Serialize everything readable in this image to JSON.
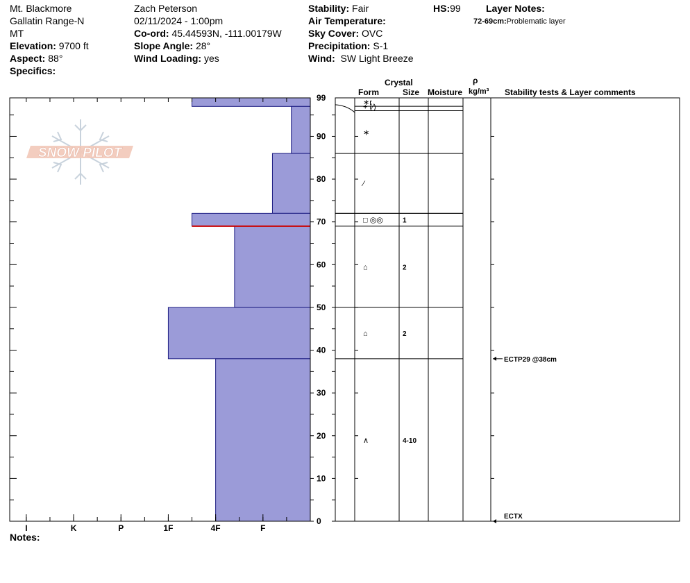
{
  "header": {
    "location": "Mt. Blackmore",
    "range": "Gallatin Range-N",
    "state": "MT",
    "elevation_label": "Elevation:",
    "elevation_value": "9700 ft",
    "aspect_label": "Aspect:",
    "aspect_value": "88°",
    "specifics_label": "Specifics:",
    "observer": "Zach Peterson",
    "datetime": "02/11/2024 - 1:00pm",
    "coord_label": "Co-ord:",
    "coord_value": "45.44593N, -111.00179W",
    "slope_label": "Slope Angle:",
    "slope_value": "28°",
    "wind_loading_label": "Wind Loading:",
    "wind_loading_value": "yes",
    "stability_label": "Stability:",
    "stability_value": "Fair",
    "air_temp_label": "Air Temperature:",
    "sky_label": "Sky Cover:",
    "sky_value": "OVC",
    "precip_label": "Precipitation:",
    "precip_value": "S-1",
    "wind_label": "Wind:",
    "wind_value": "SW Light Breeze",
    "hs_label": "HS:",
    "hs_value": "99",
    "layer_notes_label": "Layer Notes:",
    "layer_note_range": "72-69cm:",
    "layer_note_text": "Problematic layer"
  },
  "logo": {
    "text": "SNOW PILOT"
  },
  "notes_label": "Notes:",
  "column_headers": {
    "crystal": "Crystal",
    "form": "Form",
    "size": "Size",
    "moisture": "Moisture",
    "rho": "ρ",
    "density_unit": "kg/m³",
    "stability": "Stability tests & Layer comments"
  },
  "chart_data": {
    "type": "bar",
    "title": "",
    "xlabel": "",
    "ylabel": "",
    "ylim": [
      0,
      99
    ],
    "y_ticks": [
      0,
      10,
      20,
      30,
      40,
      50,
      60,
      70,
      80,
      90,
      99
    ],
    "hardness_scale": [
      "I",
      "K",
      "P",
      "1F",
      "4F",
      "F"
    ],
    "hardness_tick_values": [
      6.0,
      5.0,
      4.0,
      3.0,
      2.0,
      1.0
    ],
    "hardness_xlim": [
      0,
      6.35
    ],
    "series": [
      {
        "layers": [
          {
            "top": 99,
            "bottom": 97,
            "hardness": 2.5
          },
          {
            "top": 97,
            "bottom": 86,
            "hardness": 0.4
          },
          {
            "top": 86,
            "bottom": 72,
            "hardness": 0.8
          },
          {
            "top": 72,
            "bottom": 69,
            "hardness": 2.5
          },
          {
            "top": 69,
            "bottom": 50,
            "hardness": 1.6
          },
          {
            "top": 50,
            "bottom": 38,
            "hardness": 3.0
          },
          {
            "top": 38,
            "bottom": 0,
            "hardness": 2.0
          }
        ]
      }
    ],
    "problem_layer_depth": 69,
    "layer_boundaries": [
      99,
      97,
      96,
      86,
      72,
      69,
      50,
      38
    ],
    "crystals": [
      {
        "depth": 98,
        "form": "∗r",
        "size": ""
      },
      {
        "depth": 97,
        "form": "+ (⁄)",
        "size": ""
      },
      {
        "depth": 91,
        "form": "∗",
        "size": ""
      },
      {
        "depth": 79,
        "form": "⁄",
        "size": ""
      },
      {
        "depth": 70.5,
        "form": "□ ◎◎",
        "size": "1"
      },
      {
        "depth": 59.5,
        "form": "⌂",
        "size": "2"
      },
      {
        "depth": 44,
        "form": "⌂",
        "size": "2"
      },
      {
        "depth": 19,
        "form": "∧",
        "size": "4-10"
      }
    ],
    "stability_tests": [
      {
        "depth": 38,
        "label": "ECTP29 @38cm"
      },
      {
        "depth": 0,
        "label": "ECTX"
      }
    ]
  },
  "colors": {
    "bar_fill": "#9b9bd8",
    "bar_stroke": "#1a1a80",
    "problem_line": "#cc0000",
    "logo_fill": "#f2c8b8",
    "logo_snowflake": "#c8d2dc"
  }
}
